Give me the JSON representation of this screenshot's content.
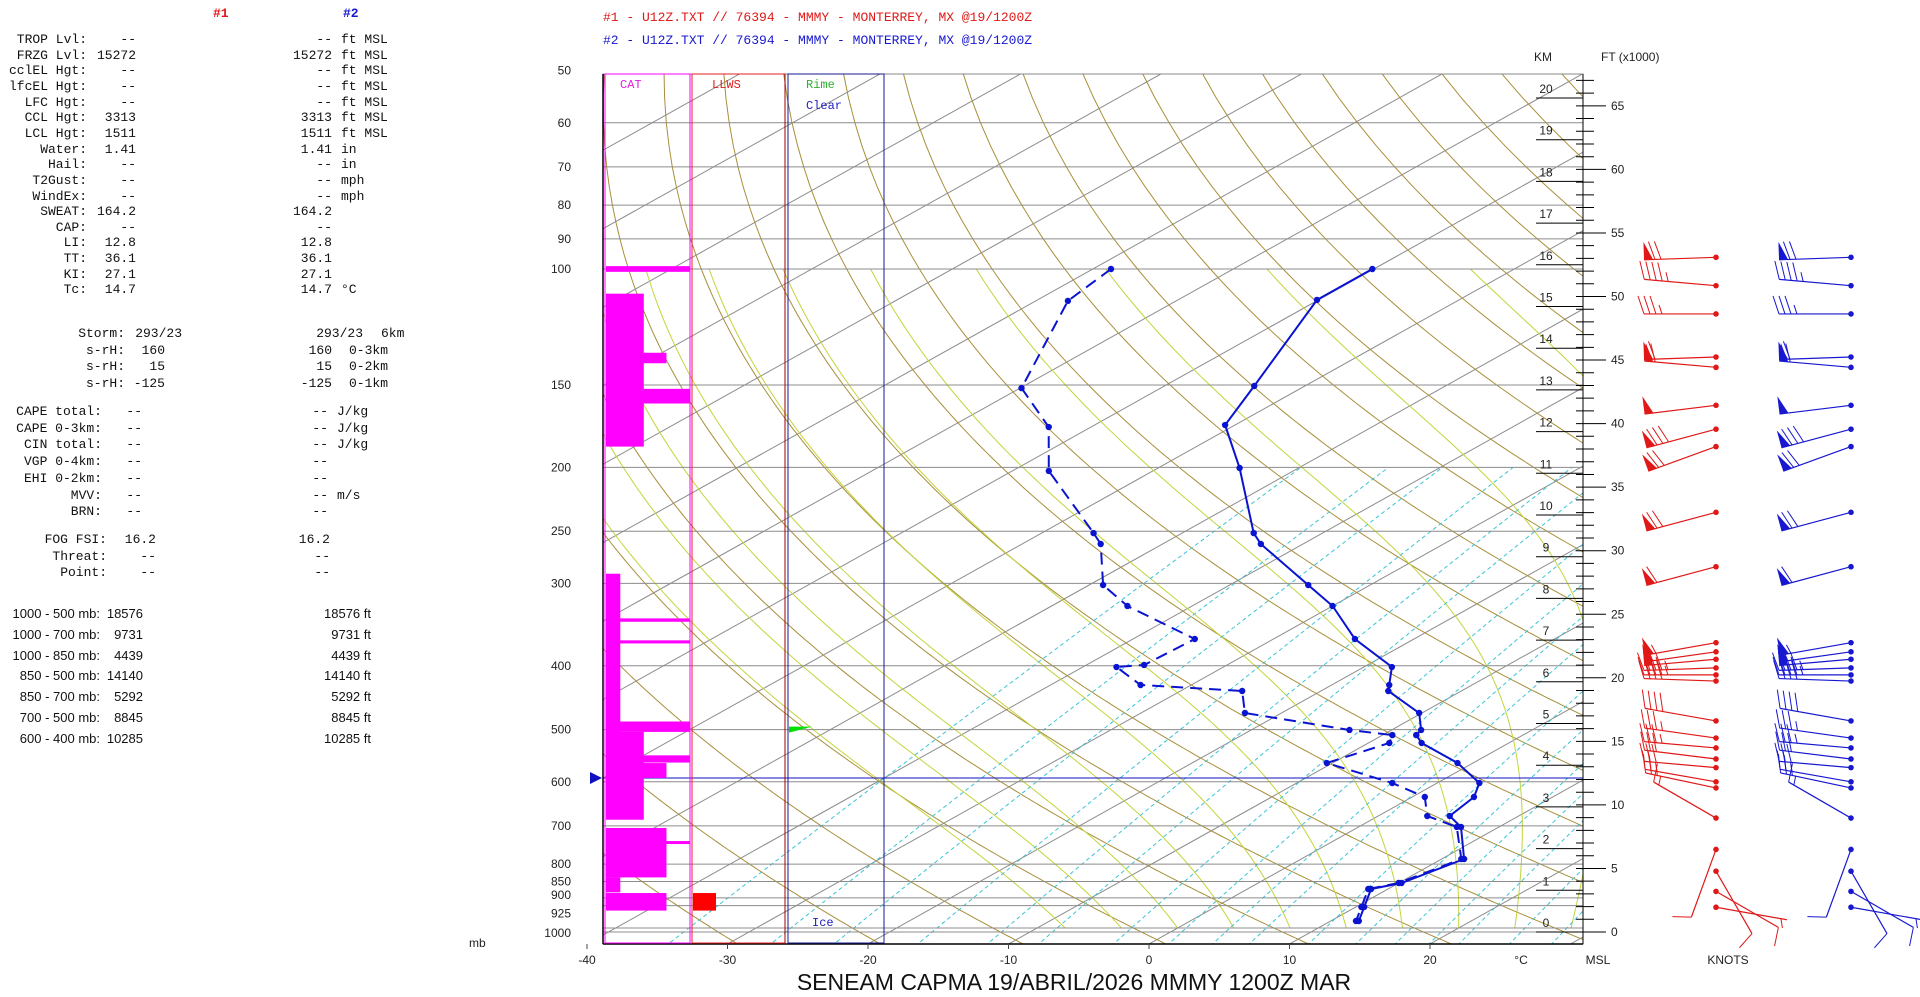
{
  "left_panel": {
    "col1_header": "#1",
    "col2_header": "#2",
    "indices": [
      [
        "TROP Lvl:",
        "--",
        "--",
        "ft MSL"
      ],
      [
        "FRZG Lvl:",
        "15272",
        "15272",
        "ft MSL"
      ],
      [
        "cclEL Hgt:",
        "--",
        "--",
        "ft MSL"
      ],
      [
        "lfcEL Hgt:",
        "--",
        "--",
        "ft MSL"
      ],
      [
        "LFC Hgt:",
        "--",
        "--",
        "ft MSL"
      ],
      [
        "CCL Hgt:",
        "3313",
        "3313",
        "ft MSL"
      ],
      [
        "LCL Hgt:",
        "1511",
        "1511",
        "ft MSL"
      ],
      [
        "Water:",
        "1.41",
        "1.41",
        "in"
      ],
      [
        "Hail:",
        "--",
        "--",
        "in"
      ],
      [
        "T2Gust:",
        "--",
        "--",
        "mph"
      ],
      [
        "WindEx:",
        "--",
        "--",
        "mph"
      ],
      [
        "SWEAT:",
        "164.2",
        "164.2",
        ""
      ],
      [
        "CAP:",
        "--",
        "--",
        ""
      ],
      [
        "LI:",
        "12.8",
        "12.8",
        ""
      ],
      [
        "TT:",
        "36.1",
        "36.1",
        ""
      ],
      [
        "KI:",
        "27.1",
        "27.1",
        ""
      ],
      [
        "Tc:",
        "14.7",
        "14.7",
        "°C"
      ]
    ],
    "storm": [
      [
        "Storm:",
        "293/23",
        "293/23",
        "6km"
      ],
      [
        "s-rH:",
        "160",
        "160",
        "0-3km"
      ],
      [
        "s-rH:",
        "15",
        "15",
        "0-2km"
      ],
      [
        "s-rH:",
        "-125",
        "-125",
        "0-1km"
      ]
    ],
    "cape": [
      [
        "CAPE total:",
        "--",
        "--",
        "J/kg"
      ],
      [
        "CAPE 0-3km:",
        "--",
        "--",
        "J/kg"
      ],
      [
        "CIN total:",
        "--",
        "--",
        "J/kg"
      ],
      [
        "VGP 0-4km:",
        "--",
        "--",
        ""
      ],
      [
        "EHI 0-2km:",
        "--",
        "--",
        ""
      ],
      [
        "MVV:",
        "--",
        "--",
        "m/s"
      ],
      [
        "BRN:",
        "--",
        "--",
        ""
      ]
    ],
    "fog": [
      [
        "FOG FSI:",
        "16.2",
        "16.2",
        ""
      ],
      [
        "Threat:",
        "--",
        "--",
        ""
      ],
      [
        "Point:",
        "--",
        "--",
        ""
      ]
    ],
    "thickness": [
      [
        "1000 - 500 mb:",
        "18576",
        "18576 ft",
        ""
      ],
      [
        "1000 - 700 mb:",
        "9731",
        "9731 ft",
        ""
      ],
      [
        "1000 - 850 mb:",
        "4439",
        "4439 ft",
        ""
      ],
      [
        "850 - 500 mb:",
        "14140",
        "14140 ft",
        ""
      ],
      [
        "850 - 700 mb:",
        "5292",
        "5292 ft",
        ""
      ],
      [
        "700 - 500 mb:",
        "8845",
        "8845 ft",
        ""
      ],
      [
        "600 - 400 mb:",
        "10285",
        "10285 ft",
        ""
      ]
    ]
  },
  "chart_data": {
    "type": "line",
    "subtype": "skew-T log-P sounding",
    "header_lines": [
      {
        "text": "#1 - U12Z.TXT // 76394 - MMMY - MONTERREY, MX   @19/1200Z",
        "color": "#e01818"
      },
      {
        "text": "#2 - U12Z.TXT // 76394 - MMMY - MONTERREY, MX   @19/1200Z",
        "color": "#1818d0"
      }
    ],
    "title": "SENEAM   CAPMA   19/ABRIL/2026   MMMY   1200Z   MAR",
    "xlabel": "°C",
    "ylabel": "mb",
    "xlim": [
      -40,
      30
    ],
    "ylim_mb": [
      1050,
      50
    ],
    "pressure_ticks": [
      "50",
      "60",
      "70",
      "80",
      "90",
      "100",
      "150",
      "200",
      "250",
      "300",
      "400",
      "500",
      "600",
      "700",
      "800",
      "850",
      "900",
      "925",
      "1000"
    ],
    "temp_ticks": [
      "-40",
      "-30",
      "-20",
      "-10",
      "0",
      "10",
      "20"
    ],
    "km_label": "KM",
    "ft_label": "FT (x1000)",
    "msl_label": "MSL",
    "knots_label": "KNOTS",
    "km_ticks": [
      "0",
      "1",
      "2",
      "3",
      "4",
      "5",
      "6",
      "7",
      "8",
      "9",
      "10",
      "11",
      "12",
      "13",
      "14",
      "15",
      "16",
      "17",
      "18",
      "19",
      "20"
    ],
    "ft_ticks": [
      "0",
      "5",
      "10",
      "15",
      "20",
      "25",
      "30",
      "35",
      "40",
      "45",
      "50",
      "55",
      "60",
      "65"
    ],
    "panel_labels": {
      "cat": "CAT",
      "llws": "LLWS",
      "rime": "Rime",
      "clear": "Clear",
      "ice": "Ice"
    },
    "highlight_level_mb": 592,
    "colors": {
      "temperature": "#0a14d0",
      "dewpoint": "#0a14d0",
      "cat": "#ff00ff",
      "llws": "#ff0000",
      "rime": "#00e000",
      "sounding1": "#e01818",
      "sounding2": "#1818d0"
    },
    "series": [
      {
        "name": "Temperature",
        "style": "solid",
        "p": [
          100,
          111.4,
          150.5,
          172.5,
          200.4,
          251.6,
          261.4,
          301.7,
          324.6,
          364.3,
          401.8,
          427.8,
          436.9,
          471.8,
          500.6,
          509.6,
          524,
          561.9,
          602.5,
          632.7,
          676.2,
          702.6,
          785.8,
          854.5,
          872.6,
          929.2,
          975.8
        ],
        "T": [
          -70.1,
          -70.1,
          -63.6,
          -60.7,
          -54.2,
          -44.9,
          -43.0,
          -34.4,
          -30.0,
          -24.2,
          -18.0,
          -15.9,
          -15.2,
          -10.2,
          -7.9,
          -7.6,
          -6.2,
          -1.1,
          3.0,
          4.4,
          5.1,
          7.3,
          11.6,
          10.2,
          8.8,
          10.6,
          12.0
        ]
      },
      {
        "name": "Dewpoint",
        "style": "dashed",
        "p": [
          100,
          111.8,
          151.6,
          173.7,
          202.5,
          251.6,
          261.4,
          301.7,
          324.6,
          364.3,
          398.9,
          401.8,
          427.8,
          436.9,
          471.8,
          500.6,
          509.6,
          524,
          561.9,
          602.5,
          632.7,
          676.2,
          702.6,
          785.8,
          854.5,
          872.6,
          929.2,
          975.8
        ],
        "T": [
          -88.7,
          -87.7,
          -79.9,
          -73.0,
          -67.4,
          -56.3,
          -54.4,
          -49.0,
          -44.6,
          -35.6,
          -35.9,
          -37.6,
          -33.6,
          -25.6,
          -22.6,
          -13.0,
          -9.3,
          -8.5,
          -10.4,
          -3.2,
          0.9,
          3.5,
          7.0,
          11.4,
          10.0,
          8.6,
          10.4,
          11.8
        ]
      }
    ],
    "cat_layers_mb": [
      {
        "bottom": 101,
        "top": 99,
        "intensity": 1.0
      },
      {
        "bottom": 186,
        "top": 109,
        "intensity": 0.45
      },
      {
        "bottom": 139,
        "top": 134,
        "intensity": 0.72
      },
      {
        "bottom": 160,
        "top": 152,
        "intensity": 1.0
      },
      {
        "bottom": 683,
        "top": 290,
        "intensity": 0.17
      },
      {
        "bottom": 343,
        "top": 339,
        "intensity": 1.0
      },
      {
        "bottom": 370,
        "top": 366,
        "intensity": 1.0
      },
      {
        "bottom": 504,
        "top": 486,
        "intensity": 1.0
      },
      {
        "bottom": 594,
        "top": 504,
        "intensity": 0.45
      },
      {
        "bottom": 561,
        "top": 547,
        "intensity": 1.0
      },
      {
        "bottom": 592,
        "top": 562,
        "intensity": 0.72
      },
      {
        "bottom": 685,
        "top": 592,
        "intensity": 0.45
      },
      {
        "bottom": 838,
        "top": 705,
        "intensity": 0.72
      },
      {
        "bottom": 744,
        "top": 738,
        "intensity": 1.0
      },
      {
        "bottom": 883,
        "top": 838,
        "intensity": 0.17
      },
      {
        "bottom": 941,
        "top": 885,
        "intensity": 0.72
      }
    ],
    "llws_layers_mb": [
      {
        "bottom": 941,
        "top": 885,
        "intensity": 0.25
      }
    ],
    "icing_flags_mb": [
      {
        "p": 500,
        "type": "rime"
      }
    ],
    "winds": [
      {
        "p": 96,
        "dir": 268,
        "spd": 70
      },
      {
        "p": 106,
        "dir": 275,
        "spd": 45
      },
      {
        "p": 117,
        "dir": 270,
        "spd": 35
      },
      {
        "p": 136,
        "dir": 268,
        "spd": 60
      },
      {
        "p": 141,
        "dir": 275,
        "spd": 60
      },
      {
        "p": 161,
        "dir": 263,
        "spd": 50
      },
      {
        "p": 175,
        "dir": 255,
        "spd": 80
      },
      {
        "p": 186,
        "dir": 250,
        "spd": 70
      },
      {
        "p": 234,
        "dir": 255,
        "spd": 70
      },
      {
        "p": 283,
        "dir": 255,
        "spd": 60
      },
      {
        "p": 369,
        "dir": 260,
        "spd": 55
      },
      {
        "p": 381,
        "dir": 262,
        "spd": 50
      },
      {
        "p": 391,
        "dir": 265,
        "spd": 50
      },
      {
        "p": 403,
        "dir": 268,
        "spd": 45
      },
      {
        "p": 413,
        "dir": 270,
        "spd": 45
      },
      {
        "p": 422,
        "dir": 272,
        "spd": 40
      },
      {
        "p": 485,
        "dir": 280,
        "spd": 40
      },
      {
        "p": 515,
        "dir": 278,
        "spd": 35
      },
      {
        "p": 533,
        "dir": 275,
        "spd": 35
      },
      {
        "p": 554,
        "dir": 277,
        "spd": 30
      },
      {
        "p": 571,
        "dir": 275,
        "spd": 30
      },
      {
        "p": 600,
        "dir": 280,
        "spd": 25
      },
      {
        "p": 613,
        "dir": 282,
        "spd": 25
      },
      {
        "p": 681,
        "dir": 300,
        "spd": 15
      },
      {
        "p": 760,
        "dir": 200,
        "spd": 10
      },
      {
        "p": 820,
        "dir": 150,
        "spd": 10
      },
      {
        "p": 880,
        "dir": 120,
        "spd": 10
      },
      {
        "p": 930,
        "dir": 100,
        "spd": 5
      }
    ]
  }
}
